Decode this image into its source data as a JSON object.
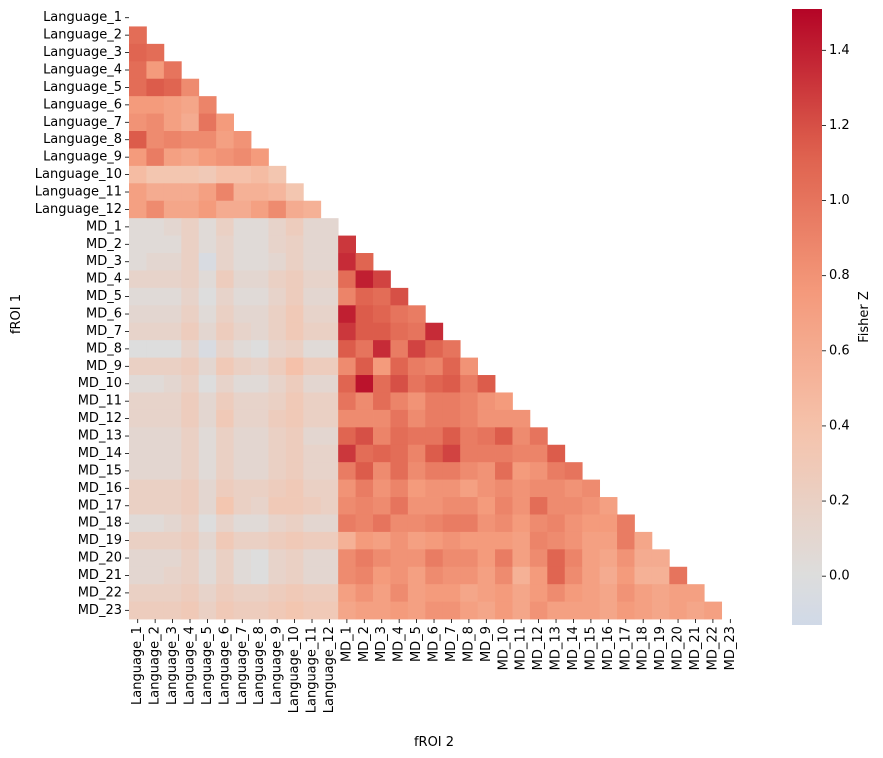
{
  "chart_data": {
    "type": "heatmap",
    "mask": "upper-triangle-and-diagonal",
    "xlabel": "fROI 2",
    "ylabel": "fROI 1",
    "labels": [
      "Language_1",
      "Language_2",
      "Language_3",
      "Language_4",
      "Language_5",
      "Language_6",
      "Language_7",
      "Language_8",
      "Language_9",
      "Language_10",
      "Language_11",
      "Language_12",
      "MD_1",
      "MD_2",
      "MD_3",
      "MD_4",
      "MD_5",
      "MD_6",
      "MD_7",
      "MD_8",
      "MD_9",
      "MD_10",
      "MD_11",
      "MD_12",
      "MD_13",
      "MD_14",
      "MD_15",
      "MD_16",
      "MD_17",
      "MD_18",
      "MD_19",
      "MD_20",
      "MD_21",
      "MD_22",
      "MD_23"
    ],
    "colorbar": {
      "label": "Fisher Z",
      "range": [
        -0.13,
        1.51
      ],
      "center": 0.0,
      "colormap": "coolwarm",
      "ticks": [
        0.0,
        0.2,
        0.4,
        0.6,
        0.8,
        1.0,
        1.2,
        1.4
      ],
      "tick_labels": [
        "0.0",
        "0.2",
        "0.4",
        "0.6",
        "0.8",
        "1.0",
        "1.2",
        "1.4"
      ]
    },
    "values": [
      [],
      [
        1.05
      ],
      [
        1.1,
        1.05
      ],
      [
        1.05,
        0.75,
        1.0
      ],
      [
        1.05,
        1.15,
        1.1,
        0.85
      ],
      [
        0.75,
        0.75,
        0.7,
        0.65,
        0.9
      ],
      [
        0.8,
        0.85,
        0.7,
        0.6,
        1.0,
        0.75
      ],
      [
        1.15,
        0.85,
        0.9,
        0.85,
        0.85,
        0.7,
        0.8
      ],
      [
        0.75,
        0.95,
        0.7,
        0.65,
        0.75,
        0.8,
        0.85,
        0.75
      ],
      [
        0.45,
        0.35,
        0.35,
        0.35,
        0.3,
        0.4,
        0.4,
        0.45,
        0.35
      ],
      [
        0.7,
        0.6,
        0.6,
        0.6,
        0.7,
        0.9,
        0.55,
        0.55,
        0.5,
        0.35
      ],
      [
        0.7,
        0.85,
        0.65,
        0.65,
        0.75,
        0.6,
        0.6,
        0.7,
        0.85,
        0.6,
        0.55
      ],
      [
        0.05,
        0.05,
        0.1,
        0.2,
        0.05,
        0.2,
        0.05,
        0.05,
        0.15,
        0.25,
        0.1,
        0.1
      ],
      [
        0.05,
        0.05,
        0.05,
        0.2,
        0.05,
        0.15,
        0.05,
        0.05,
        0.15,
        0.2,
        0.1,
        0.1,
        1.3
      ],
      [
        0.05,
        0.1,
        0.1,
        0.2,
        -0.05,
        0.15,
        0.05,
        0.05,
        0.1,
        0.2,
        0.1,
        0.1,
        1.35,
        1.1
      ],
      [
        0.15,
        0.15,
        0.15,
        0.2,
        0.05,
        0.25,
        0.1,
        0.1,
        0.2,
        0.25,
        0.15,
        0.15,
        1.05,
        1.4,
        1.25
      ],
      [
        0.05,
        0.05,
        0.05,
        0.15,
        0.0,
        0.15,
        0.05,
        0.05,
        0.15,
        0.25,
        0.1,
        0.1,
        0.9,
        1.1,
        1.05,
        1.2
      ],
      [
        0.1,
        0.1,
        0.1,
        0.2,
        0.05,
        0.2,
        0.1,
        0.1,
        0.2,
        0.3,
        0.15,
        0.15,
        1.4,
        1.15,
        1.1,
        1.0,
        0.95
      ],
      [
        0.15,
        0.15,
        0.15,
        0.25,
        0.1,
        0.25,
        0.15,
        0.1,
        0.2,
        0.3,
        0.2,
        0.2,
        1.3,
        1.15,
        1.15,
        1.05,
        1.0,
        1.35
      ],
      [
        0.0,
        0.0,
        0.0,
        0.15,
        -0.05,
        0.15,
        0.05,
        0.0,
        0.15,
        0.2,
        0.05,
        0.05,
        1.15,
        1.0,
        1.35,
        0.95,
        1.25,
        1.1,
        1.0
      ],
      [
        0.2,
        0.2,
        0.2,
        0.25,
        0.1,
        0.3,
        0.2,
        0.15,
        0.25,
        0.4,
        0.25,
        0.25,
        0.85,
        1.15,
        0.75,
        1.1,
        0.95,
        0.9,
        1.1,
        0.8
      ],
      [
        0.05,
        0.05,
        0.1,
        0.2,
        0.0,
        0.15,
        0.05,
        0.05,
        0.15,
        0.25,
        0.1,
        0.1,
        1.1,
        1.45,
        1.05,
        1.2,
        1.0,
        1.1,
        1.15,
        0.95,
        1.15
      ],
      [
        0.15,
        0.15,
        0.15,
        0.25,
        0.1,
        0.25,
        0.15,
        0.15,
        0.2,
        0.3,
        0.2,
        0.2,
        1.0,
        0.85,
        1.05,
        0.9,
        0.8,
        0.95,
        0.95,
        0.9,
        0.8,
        0.75
      ],
      [
        0.15,
        0.15,
        0.15,
        0.25,
        0.1,
        0.3,
        0.15,
        0.15,
        0.25,
        0.3,
        0.2,
        0.2,
        0.85,
        0.85,
        0.85,
        1.0,
        0.85,
        0.95,
        0.95,
        0.9,
        0.8,
        0.8,
        0.8
      ],
      [
        0.1,
        0.1,
        0.1,
        0.2,
        0.05,
        0.2,
        0.1,
        0.1,
        0.2,
        0.25,
        0.1,
        0.1,
        1.1,
        1.2,
        0.9,
        1.05,
        1.0,
        1.0,
        1.15,
        0.95,
        1.0,
        1.15,
        0.85,
        1.0
      ],
      [
        0.1,
        0.1,
        0.1,
        0.2,
        0.05,
        0.2,
        0.1,
        0.1,
        0.2,
        0.25,
        0.15,
        0.15,
        1.3,
        1.05,
        1.1,
        1.05,
        0.9,
        1.15,
        1.25,
        0.95,
        0.95,
        0.95,
        0.9,
        0.9,
        1.15
      ],
      [
        0.1,
        0.1,
        0.1,
        0.2,
        0.05,
        0.2,
        0.1,
        0.1,
        0.2,
        0.25,
        0.15,
        0.15,
        0.95,
        1.15,
        0.85,
        1.05,
        0.85,
        0.95,
        0.95,
        0.85,
        0.8,
        1.05,
        0.75,
        0.8,
        0.95,
        1.0
      ],
      [
        0.2,
        0.2,
        0.2,
        0.25,
        0.1,
        0.25,
        0.2,
        0.2,
        0.25,
        0.3,
        0.2,
        0.2,
        0.8,
        0.95,
        0.8,
        0.9,
        0.75,
        0.8,
        0.8,
        0.7,
        0.8,
        0.85,
        0.8,
        0.85,
        0.85,
        0.8,
        0.85
      ],
      [
        0.2,
        0.2,
        0.2,
        0.25,
        0.1,
        0.35,
        0.2,
        0.15,
        0.3,
        0.3,
        0.25,
        0.2,
        0.85,
        0.9,
        0.85,
        1.0,
        0.8,
        0.8,
        0.85,
        0.85,
        0.75,
        0.9,
        0.8,
        1.05,
        0.85,
        0.85,
        0.8,
        0.7
      ],
      [
        0.05,
        0.05,
        0.1,
        0.2,
        0.0,
        0.15,
        0.05,
        0.05,
        0.15,
        0.2,
        0.1,
        0.1,
        0.95,
        0.9,
        1.0,
        0.85,
        0.85,
        0.9,
        0.95,
        0.95,
        0.8,
        0.85,
        0.75,
        0.85,
        0.9,
        0.8,
        0.75,
        0.75,
        0.95
      ],
      [
        0.2,
        0.2,
        0.2,
        0.25,
        0.1,
        0.3,
        0.2,
        0.2,
        0.25,
        0.3,
        0.25,
        0.25,
        0.55,
        0.75,
        0.7,
        0.8,
        0.7,
        0.75,
        0.8,
        0.75,
        0.75,
        0.75,
        0.7,
        0.9,
        0.85,
        0.8,
        0.7,
        0.7,
        0.95,
        0.65
      ],
      [
        0.1,
        0.1,
        0.1,
        0.2,
        0.05,
        0.2,
        0.05,
        0.0,
        0.15,
        0.2,
        0.1,
        0.1,
        0.85,
        0.95,
        0.85,
        0.8,
        0.8,
        0.95,
        0.85,
        0.85,
        0.75,
        0.95,
        0.7,
        0.85,
        1.1,
        0.9,
        0.7,
        0.65,
        0.8,
        0.6,
        0.6
      ],
      [
        0.1,
        0.1,
        0.15,
        0.2,
        0.05,
        0.2,
        0.05,
        0.0,
        0.15,
        0.2,
        0.1,
        0.1,
        0.85,
        0.9,
        0.75,
        0.8,
        0.7,
        0.85,
        0.8,
        0.8,
        0.7,
        0.85,
        0.55,
        0.75,
        1.1,
        0.85,
        0.7,
        0.6,
        0.75,
        0.55,
        0.55,
        1.0
      ],
      [
        0.2,
        0.2,
        0.2,
        0.25,
        0.15,
        0.25,
        0.2,
        0.2,
        0.25,
        0.3,
        0.25,
        0.25,
        0.7,
        0.8,
        0.7,
        0.85,
        0.7,
        0.75,
        0.75,
        0.65,
        0.7,
        0.75,
        0.65,
        0.75,
        0.85,
        0.75,
        0.7,
        0.65,
        0.8,
        0.7,
        0.65,
        0.7,
        0.7
      ],
      [
        0.25,
        0.25,
        0.25,
        0.3,
        0.2,
        0.3,
        0.25,
        0.25,
        0.3,
        0.35,
        0.3,
        0.3,
        0.65,
        0.7,
        0.7,
        0.75,
        0.7,
        0.8,
        0.8,
        0.7,
        0.65,
        0.75,
        0.65,
        0.8,
        0.7,
        0.7,
        0.7,
        0.65,
        0.75,
        0.7,
        0.65,
        0.7,
        0.65,
        0.7
      ]
    ]
  }
}
